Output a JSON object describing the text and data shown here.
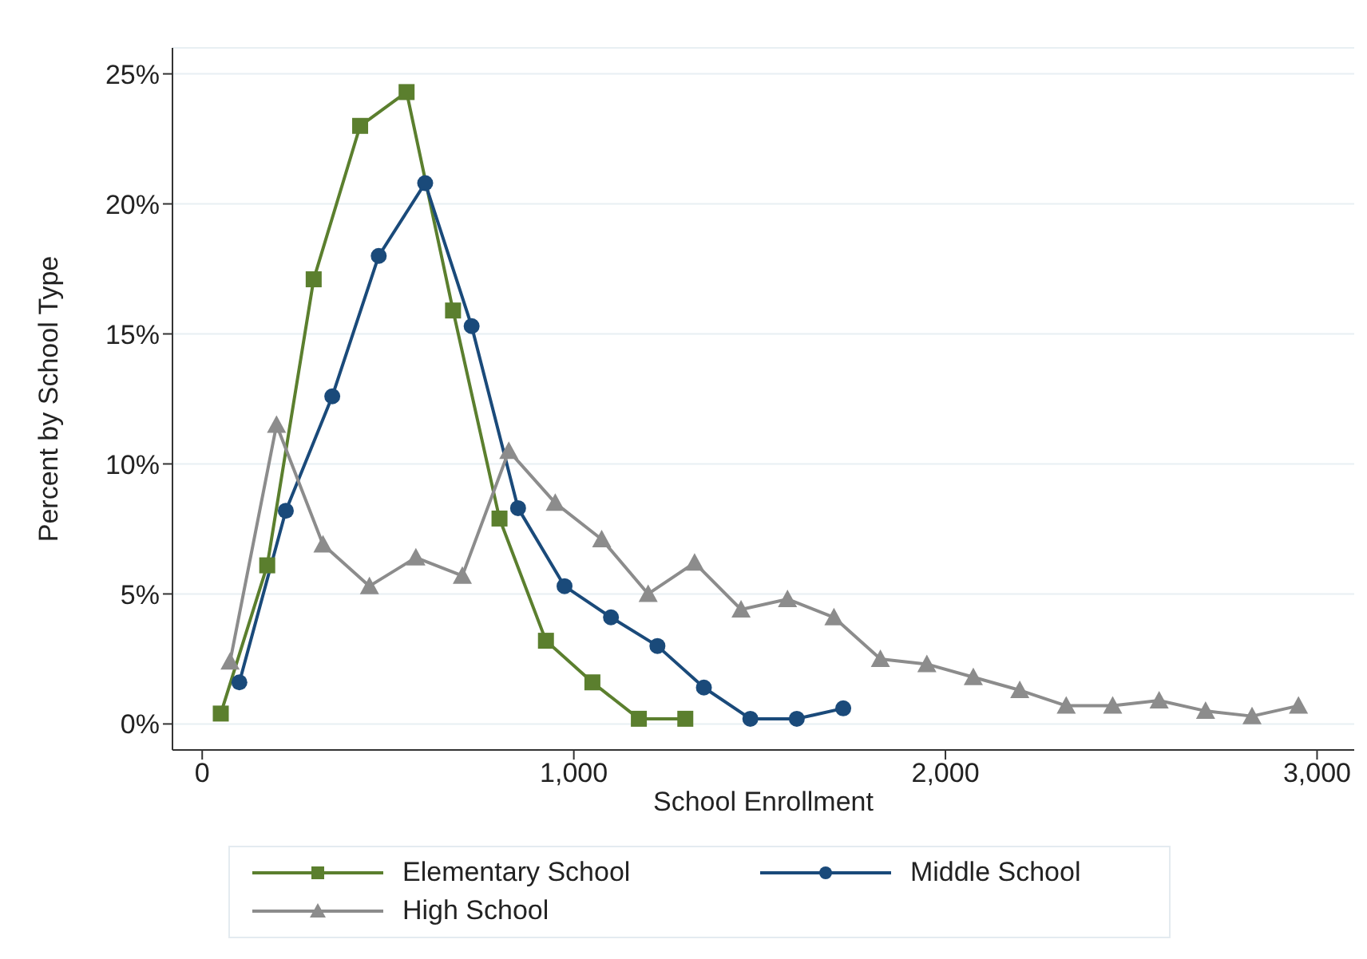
{
  "chart_data": {
    "type": "line",
    "xlabel": "School Enrollment",
    "ylabel": "Percent by School Type",
    "xlim": [
      -80,
      3100
    ],
    "xticks": [
      0,
      {
        "value": 1000,
        "label": "1,000"
      },
      {
        "value": 2000,
        "label": "2,000"
      },
      {
        "value": 3000,
        "label": "3,000"
      }
    ],
    "ylim": [
      -1,
      26
    ],
    "yticks": [
      {
        "value": 0,
        "label": "0%"
      },
      {
        "value": 5,
        "label": "5%"
      },
      {
        "value": 10,
        "label": "10%"
      },
      {
        "value": 15,
        "label": "15%"
      },
      {
        "value": 20,
        "label": "20%"
      },
      {
        "value": 25,
        "label": "25%"
      }
    ],
    "grid": "y",
    "legend": "bottom",
    "series": [
      {
        "name": "Elementary School",
        "color": "#5b7f2e",
        "marker": "square",
        "x": [
          50,
          175,
          300,
          425,
          550,
          675,
          800,
          925,
          1050,
          1175,
          1300
        ],
        "values": [
          0.4,
          6.1,
          17.1,
          23.0,
          24.3,
          15.9,
          7.9,
          3.2,
          1.6,
          0.2,
          0.2
        ]
      },
      {
        "name": "Middle School",
        "color": "#1a4a7a",
        "marker": "circle",
        "x": [
          100,
          225,
          350,
          475,
          600,
          725,
          850,
          975,
          1100,
          1225,
          1350,
          1475,
          1600,
          1725
        ],
        "values": [
          1.6,
          8.2,
          12.6,
          18.0,
          20.8,
          15.3,
          8.3,
          5.3,
          4.1,
          3.0,
          1.4,
          0.2,
          0.2,
          0.6
        ]
      },
      {
        "name": "High School",
        "color": "#8c8c8c",
        "marker": "triangle",
        "x": [
          75,
          200,
          325,
          450,
          575,
          700,
          825,
          950,
          1075,
          1200,
          1325,
          1450,
          1575,
          1700,
          1825,
          1950,
          2075,
          2200,
          2325,
          2450,
          2575,
          2700,
          2825,
          2950
        ],
        "values": [
          2.4,
          11.5,
          6.9,
          5.3,
          6.4,
          5.7,
          10.5,
          8.5,
          7.1,
          5.0,
          6.2,
          4.4,
          4.8,
          4.1,
          2.5,
          2.3,
          1.8,
          1.3,
          0.7,
          0.7,
          0.9,
          0.5,
          0.3,
          0.7
        ]
      }
    ]
  }
}
